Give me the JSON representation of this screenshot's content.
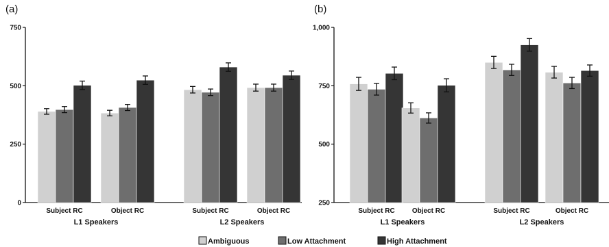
{
  "chart_data": [
    {
      "type": "bar",
      "panel_label": "(a)",
      "ylim": [
        0,
        750
      ],
      "yticks": [
        "0",
        "250",
        "500",
        "750"
      ],
      "categories": [
        "Subject RC",
        "Object RC",
        "Subject RC",
        "Object RC"
      ],
      "groups": [
        "L1 Speakers",
        "L2 Speakers"
      ],
      "series": [
        {
          "name": "Ambiguous",
          "values": [
            390,
            383,
            483,
            492
          ],
          "errors": [
            12,
            12,
            14,
            15
          ]
        },
        {
          "name": "Low Attachment",
          "values": [
            398,
            407,
            472,
            492
          ],
          "errors": [
            13,
            13,
            14,
            15
          ]
        },
        {
          "name": "High Attachment",
          "values": [
            502,
            524,
            580,
            545
          ],
          "errors": [
            18,
            18,
            18,
            18
          ]
        }
      ]
    },
    {
      "type": "bar",
      "panel_label": "(b)",
      "ylim": [
        250,
        1000
      ],
      "yticks": [
        "250",
        "500",
        "750",
        "1,000"
      ],
      "categories": [
        "Subject RC",
        "Object RC",
        "Subject RC",
        "Object RC"
      ],
      "groups": [
        "L1 Speakers",
        "L2 Speakers"
      ],
      "series": [
        {
          "name": "Ambiguous",
          "values": [
            758,
            655,
            850,
            808
          ],
          "errors": [
            28,
            22,
            26,
            25
          ]
        },
        {
          "name": "Low Attachment",
          "values": [
            735,
            612,
            818,
            762
          ],
          "errors": [
            25,
            22,
            24,
            24
          ]
        },
        {
          "name": "High Attachment",
          "values": [
            803,
            752,
            925,
            815
          ],
          "errors": [
            27,
            28,
            27,
            24
          ]
        }
      ]
    }
  ],
  "legend": {
    "items": [
      {
        "label": "Ambiguous",
        "color": "#d0d0d0"
      },
      {
        "label": "Low Attachment",
        "color": "#6e6e6e"
      },
      {
        "label": "High Attachment",
        "color": "#353535"
      }
    ]
  },
  "colors": {
    "ambiguous": "#d0d0d0",
    "low": "#6e6e6e",
    "high": "#353535",
    "axis": "#111111"
  }
}
